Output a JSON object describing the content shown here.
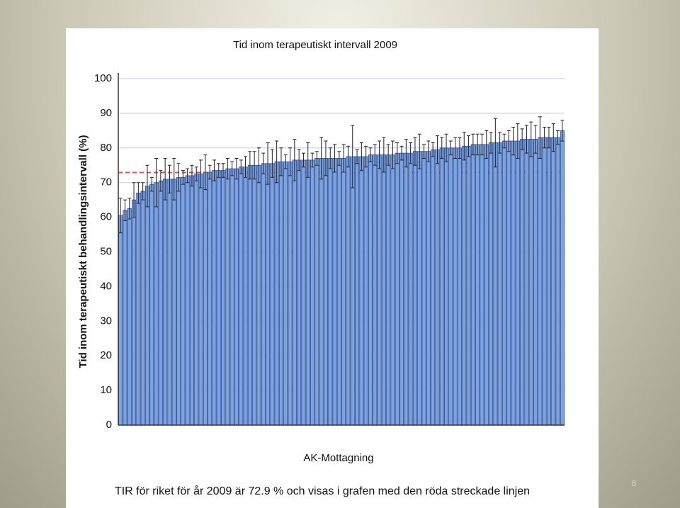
{
  "chart_data": {
    "type": "bar",
    "title": "Tid inom terapeutiskt intervall 2009",
    "ylabel": "Tid inom terapeutiskt behandlingsintervall (%)",
    "xlabel": "AK-Mottagning",
    "values": [
      60.5,
      62,
      62.5,
      65,
      67,
      67.5,
      69,
      69.5,
      70,
      70.5,
      71,
      71,
      71,
      71.5,
      71.5,
      72,
      72,
      72.5,
      72.5,
      73,
      73,
      73.5,
      73.5,
      73.5,
      74,
      74,
      74,
      74.5,
      74.5,
      75,
      75,
      75,
      75.5,
      75.5,
      75.5,
      76,
      76,
      76,
      76,
      76.5,
      76.5,
      76.5,
      76.5,
      76.5,
      77,
      77,
      77,
      77,
      77,
      77,
      77,
      77.5,
      77.5,
      77.5,
      77.5,
      77.5,
      78,
      78,
      78,
      78,
      78,
      78,
      78.5,
      78.5,
      78.5,
      78.5,
      79,
      79,
      79,
      79,
      79.5,
      79.5,
      80,
      80,
      80,
      80,
      80,
      80.5,
      80.5,
      81,
      81,
      81,
      81,
      81.5,
      81.5,
      81.5,
      82,
      82,
      82,
      82,
      82.5,
      82.5,
      82.5,
      82.5,
      83,
      83,
      83,
      83,
      83,
      85
    ],
    "errors": [
      5,
      3,
      3,
      5,
      3,
      2.5,
      6,
      2,
      7,
      3,
      6,
      4,
      6,
      4,
      2,
      2,
      3,
      2,
      4,
      5,
      2,
      3,
      2,
      2,
      3,
      2,
      3,
      2,
      3,
      4,
      4,
      5,
      3,
      6,
      4,
      6,
      4,
      2,
      4,
      6,
      3,
      2,
      5,
      2,
      2,
      6,
      5,
      3,
      4,
      2,
      4,
      3,
      9,
      2,
      4,
      3,
      2,
      3,
      4,
      5,
      3,
      4,
      3,
      2,
      4,
      3,
      4,
      5,
      2,
      3,
      2,
      4,
      3,
      4,
      2,
      3,
      3,
      4,
      3,
      3,
      3,
      3,
      4,
      3,
      7,
      3,
      2,
      3,
      4,
      5,
      3,
      4,
      5,
      4,
      6,
      3,
      3,
      4,
      2,
      3
    ],
    "color": "#7ea3dc",
    "reference_line": 72.9,
    "reference_color": "#e05050",
    "ylim": [
      0,
      100
    ],
    "yticks": [
      0,
      10,
      20,
      30,
      40,
      50,
      60,
      70,
      80,
      90,
      100
    ],
    "grid": true
  },
  "caption": "TIR för riket för år 2009 är 72.9 % och visas i grafen med den röda streckade linjen",
  "page_number": "8"
}
